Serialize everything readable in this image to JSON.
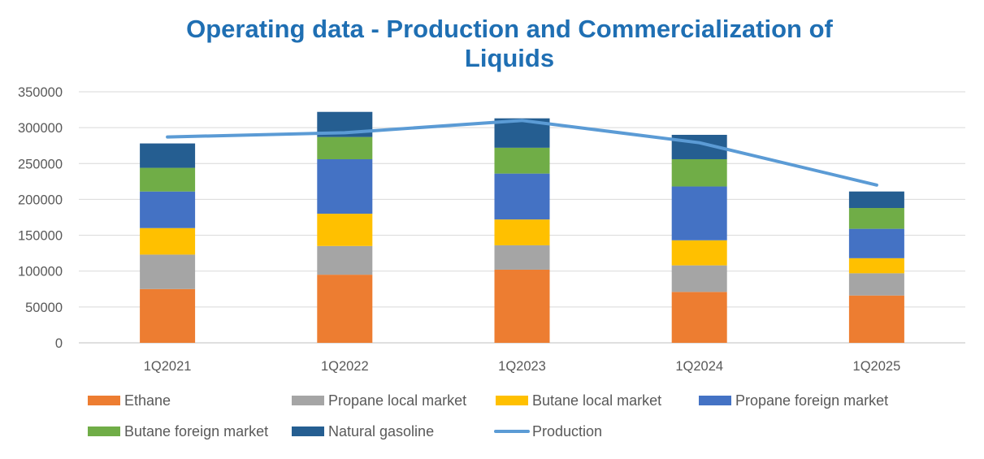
{
  "chart_data": {
    "type": "bar",
    "title_lines": [
      "Operating data - Production and Commercialization of",
      "Liquids"
    ],
    "categories": [
      "1Q2021",
      "1Q2022",
      "1Q2023",
      "1Q2024",
      "1Q2025"
    ],
    "ylim": [
      0,
      350000
    ],
    "yticks": [
      "0",
      "50000",
      "100000",
      "150000",
      "200000",
      "250000",
      "300000",
      "350000"
    ],
    "grid": true,
    "legend_position": "bottom",
    "series": [
      {
        "name": "Ethane",
        "color": "#ED7D31",
        "values": [
          75000,
          95000,
          102000,
          71000,
          66000
        ]
      },
      {
        "name": "Propane local market",
        "color": "#A5A5A5",
        "values": [
          48000,
          40000,
          34000,
          37000,
          31000
        ]
      },
      {
        "name": "Butane local market",
        "color": "#FFC000",
        "values": [
          37000,
          45000,
          36000,
          35000,
          21000
        ]
      },
      {
        "name": "Propane foreign market",
        "color": "#4472C4",
        "values": [
          51000,
          76000,
          64000,
          75000,
          41000
        ]
      },
      {
        "name": "Butane foreign market",
        "color": "#70AD47",
        "values": [
          33000,
          31000,
          36000,
          38000,
          29000
        ]
      },
      {
        "name": "Natural gasoline",
        "color": "#255E91",
        "values": [
          34000,
          35000,
          41000,
          34000,
          23000
        ]
      }
    ],
    "line_series": {
      "name": "Production",
      "color": "#5B9BD5",
      "values": [
        287000,
        293000,
        310000,
        279000,
        220000
      ]
    }
  }
}
